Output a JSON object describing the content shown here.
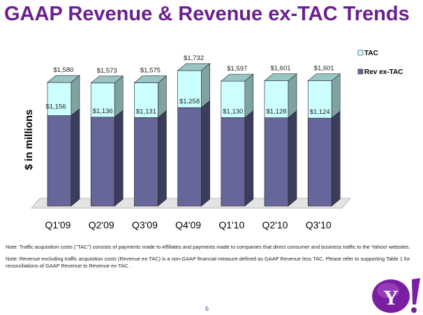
{
  "title": "GAAP Revenue & Revenue ex-TAC Trends",
  "chart_data": {
    "type": "bar",
    "stacked": true,
    "style": "3d",
    "categories": [
      "Q1'09",
      "Q2'09",
      "Q3'09",
      "Q4'09",
      "Q1'10",
      "Q2'10",
      "Q3'10"
    ],
    "series": [
      {
        "name": "Rev ex-TAC",
        "values": [
          1156,
          1136,
          1131,
          1258,
          1130,
          1128,
          1124
        ],
        "labels": [
          "$1,156",
          "$1,136",
          "$1,131",
          "$1,258",
          "$1,130",
          "$1,128",
          "$1,124"
        ],
        "color": "#66669a"
      },
      {
        "name": "TAC",
        "values": [
          424,
          437,
          444,
          474,
          467,
          473,
          477
        ],
        "color": "#ccffff"
      }
    ],
    "totals": [
      1580,
      1573,
      1575,
      1732,
      1597,
      1601,
      1601
    ],
    "total_labels": [
      "$1,580",
      "$1,573",
      "$1,575",
      "$1,732",
      "$1,597",
      "$1,601",
      "$1,601"
    ],
    "ylabel": "$ in millions",
    "legend": "top-right",
    "grid": false
  },
  "notes": [
    "Note: Traffic acquisition costs (\"TAC\") consists of payments made to Affiliates and payments made to companies that direct consumer and business traffic to the Yahoo! websites.",
    "Note: Revenue excluding traffic acquisition costs (Revenue ex-TAC) is a non-GAAP financial measure defined as GAAP Revenue less TAC.  Please refer to supporting Table 1 for reconciliations of GAAP Revenue to Revenue ex-TAC ."
  ],
  "page_number": "6",
  "logo": "Y!"
}
